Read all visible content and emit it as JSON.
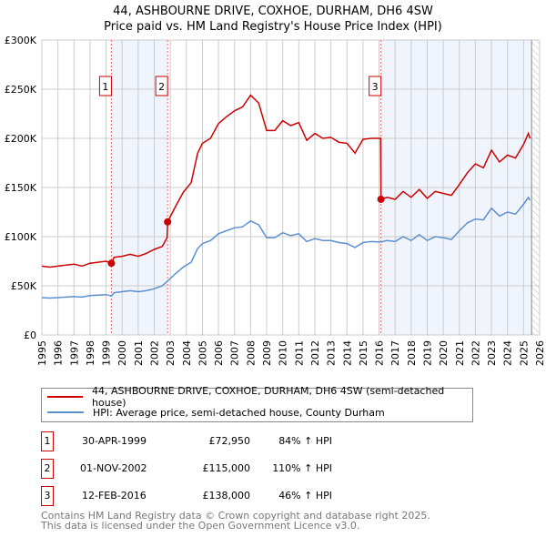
{
  "chart_data": {
    "type": "line",
    "title": "44, ASHBOURNE DRIVE, COXHOE, DURHAM, DH6 4SW",
    "subtitle": "Price paid vs. HM Land Registry's House Price Index (HPI)",
    "xlim": [
      1995,
      2026
    ],
    "ylim": [
      0,
      300000
    ],
    "yticks": [
      {
        "v": 0,
        "label": "£0"
      },
      {
        "v": 50000,
        "label": "£50K"
      },
      {
        "v": 100000,
        "label": "£100K"
      },
      {
        "v": 150000,
        "label": "£150K"
      },
      {
        "v": 200000,
        "label": "£200K"
      },
      {
        "v": 250000,
        "label": "£250K"
      },
      {
        "v": 300000,
        "label": "£300K"
      }
    ],
    "xticks": [
      "1995",
      "1996",
      "1997",
      "1998",
      "1999",
      "2000",
      "2001",
      "2002",
      "2003",
      "2004",
      "2005",
      "2006",
      "2007",
      "2008",
      "2009",
      "2010",
      "2011",
      "2012",
      "2013",
      "2014",
      "2015",
      "2016",
      "2017",
      "2018",
      "2019",
      "2020",
      "2021",
      "2022",
      "2023",
      "2024",
      "2025",
      "2026"
    ],
    "grid": true,
    "series": [
      {
        "name": "44, ASHBOURNE DRIVE, COXHOE, DURHAM, DH6 4SW (semi-detached house)",
        "color": "#cc0000",
        "x": [
          1995,
          1995.5,
          1996,
          1996.5,
          1997,
          1997.5,
          1998,
          1998.5,
          1999,
          1999.33,
          1999.5,
          2000,
          2000.5,
          2001,
          2001.5,
          2002,
          2002.5,
          2002.8,
          2002.83,
          2003.3,
          2003.8,
          2004.3,
          2004.7,
          2005,
          2005.5,
          2006,
          2006.5,
          2007,
          2007.5,
          2008,
          2008.5,
          2009,
          2009.5,
          2010,
          2010.5,
          2011,
          2011.5,
          2012,
          2012.5,
          2013,
          2013.5,
          2014,
          2014.5,
          2015,
          2015.5,
          2016.1,
          2016.12,
          2016.5,
          2017,
          2017.5,
          2018,
          2018.5,
          2019,
          2019.5,
          2020,
          2020.5,
          2021,
          2021.5,
          2022,
          2022.5,
          2023,
          2023.5,
          2024,
          2024.5,
          2025,
          2025.3,
          2025.4
        ],
        "y": [
          70000,
          69000,
          70000,
          71000,
          72000,
          70000,
          73000,
          74000,
          75000,
          72950,
          79000,
          80000,
          82000,
          80000,
          83000,
          87000,
          90000,
          99000,
          115000,
          130000,
          145000,
          155000,
          185000,
          195000,
          200000,
          215000,
          222000,
          228000,
          232000,
          244000,
          236000,
          208000,
          208000,
          218000,
          213000,
          216000,
          198000,
          205000,
          200000,
          201000,
          196000,
          195000,
          185000,
          199000,
          200000,
          200000,
          138000,
          140000,
          138000,
          146000,
          140000,
          148000,
          139000,
          146000,
          144000,
          142000,
          153000,
          165000,
          174000,
          170000,
          188000,
          176000,
          183000,
          180000,
          194000,
          205000,
          200000
        ]
      },
      {
        "name": "HPI: Average price, semi-detached house, County Durham",
        "color": "#5b8fd0",
        "x": [
          1995,
          1995.5,
          1996,
          1996.5,
          1997,
          1997.5,
          1998,
          1998.5,
          1999,
          1999.33,
          1999.5,
          2000,
          2000.5,
          2001,
          2001.5,
          2002,
          2002.5,
          2002.83,
          2003.3,
          2003.8,
          2004.3,
          2004.7,
          2005,
          2005.5,
          2006,
          2006.5,
          2007,
          2007.5,
          2008,
          2008.5,
          2009,
          2009.5,
          2010,
          2010.5,
          2011,
          2011.5,
          2012,
          2012.5,
          2013,
          2013.5,
          2014,
          2014.5,
          2015,
          2015.5,
          2016.12,
          2016.5,
          2017,
          2017.5,
          2018,
          2018.5,
          2019,
          2019.5,
          2020,
          2020.5,
          2021,
          2021.5,
          2022,
          2022.5,
          2023,
          2023.5,
          2024,
          2024.5,
          2025,
          2025.3,
          2025.4
        ],
        "y": [
          38000,
          37500,
          38000,
          38500,
          39000,
          38500,
          40000,
          40500,
          41000,
          39600,
          43000,
          44000,
          45000,
          44000,
          45000,
          47000,
          50000,
          54800,
          62000,
          69000,
          74000,
          88000,
          93000,
          96000,
          103000,
          106000,
          109000,
          110000,
          116000,
          112000,
          99000,
          99000,
          104000,
          101000,
          103000,
          95000,
          98000,
          96000,
          96000,
          94000,
          93000,
          89000,
          94000,
          95000,
          94500,
          96000,
          95000,
          100000,
          96000,
          102000,
          96000,
          100000,
          99000,
          97000,
          106000,
          114000,
          118000,
          117000,
          129000,
          121000,
          125000,
          123000,
          133000,
          140000,
          137000
        ]
      }
    ],
    "sales": [
      {
        "label": "1",
        "x": 1999.33,
        "y": 72950,
        "date": "30-APR-1999",
        "price": "£72,950",
        "hpi": "84% ↑ HPI"
      },
      {
        "label": "2",
        "x": 2002.83,
        "y": 115000,
        "date": "01-NOV-2002",
        "price": "£115,000",
        "hpi": "110% ↑ HPI"
      },
      {
        "label": "3",
        "x": 2016.12,
        "y": 138000,
        "date": "12-FEB-2016",
        "price": "£138,000",
        "hpi": "46% ↑ HPI"
      }
    ],
    "forecast_start": 2025.5,
    "legend": "below"
  },
  "footer": {
    "line1": "Contains HM Land Registry data © Crown copyright and database right 2025.",
    "line2": "This data is licensed under the Open Government Licence v3.0."
  }
}
